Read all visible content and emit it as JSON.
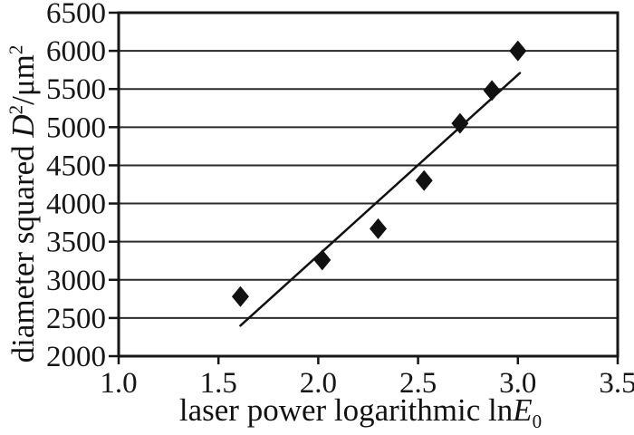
{
  "chart_data": {
    "type": "scatter",
    "title": "",
    "xlabel": "laser power logarithmic lnE₀",
    "ylabel": "diameter squared D²/μm²",
    "xlabel_parts": {
      "text": "laser power logarithmic ln",
      "var": "E",
      "sub": "0"
    },
    "ylabel_parts": {
      "text": "diameter squared ",
      "var": "D",
      "var_sup": "2",
      "unit": "/μm",
      "unit_sup": "2"
    },
    "xlim": [
      1.0,
      3.5
    ],
    "ylim": [
      2000,
      6500
    ],
    "x_ticks": [
      1.0,
      1.5,
      2.0,
      2.5,
      3.0,
      3.5
    ],
    "x_tick_labels": [
      "1.0",
      "1.5",
      "2.0",
      "2.5",
      "3.0",
      "3.5"
    ],
    "y_ticks": [
      2000,
      2500,
      3000,
      3500,
      4000,
      4500,
      5000,
      5500,
      6000,
      6500
    ],
    "y_tick_labels": [
      "2000",
      "2500",
      "3000",
      "3500",
      "4000",
      "4500",
      "5000",
      "5500",
      "6000",
      "6500"
    ],
    "grid": "horizontal",
    "legend": "none",
    "marker": "diamond",
    "points": [
      {
        "x": 1.61,
        "y": 2780
      },
      {
        "x": 2.02,
        "y": 3260
      },
      {
        "x": 2.3,
        "y": 3670
      },
      {
        "x": 2.53,
        "y": 4300
      },
      {
        "x": 2.71,
        "y": 5050
      },
      {
        "x": 2.87,
        "y": 5480
      },
      {
        "x": 3.0,
        "y": 6000
      }
    ],
    "trend_line": {
      "x1": 1.61,
      "y1": 2400,
      "x2": 3.01,
      "y2": 5710
    },
    "colors": {
      "marker": "#111111",
      "trend_line": "#111111",
      "grid": "#2a2a2a",
      "frame": "#161616",
      "text": "#121212",
      "background": "#ffffff"
    }
  }
}
